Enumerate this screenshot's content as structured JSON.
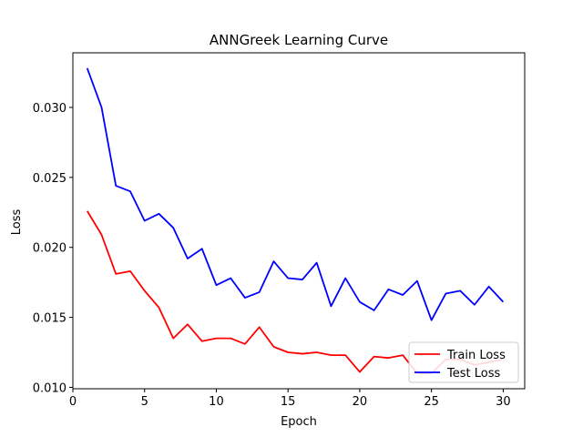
{
  "chart_data": {
    "type": "line",
    "title": "ANNGreek Learning Curve",
    "xlabel": "Epoch",
    "ylabel": "Loss",
    "xlim": [
      0,
      31.5
    ],
    "ylim": [
      0.0099,
      0.0339
    ],
    "xticks": [
      0,
      5,
      10,
      15,
      20,
      25,
      30
    ],
    "yticks": [
      0.01,
      0.015,
      0.02,
      0.025,
      0.03
    ],
    "ytick_labels": [
      "0.010",
      "0.015",
      "0.020",
      "0.025",
      "0.030"
    ],
    "grid": false,
    "legend_position": "lower-right",
    "x": [
      1,
      2,
      3,
      4,
      5,
      6,
      7,
      8,
      9,
      10,
      11,
      12,
      13,
      14,
      15,
      16,
      17,
      18,
      19,
      20,
      21,
      22,
      23,
      24,
      25,
      26,
      27,
      28,
      29,
      30
    ],
    "series": [
      {
        "name": "Train Loss",
        "color": "#ff0000",
        "values": [
          0.0226,
          0.0209,
          0.0181,
          0.0183,
          0.0169,
          0.0157,
          0.0135,
          0.0145,
          0.0133,
          0.0135,
          0.0135,
          0.0131,
          0.0143,
          0.0129,
          0.0125,
          0.0124,
          0.0125,
          0.0123,
          0.0123,
          0.0111,
          0.0122,
          0.0121,
          0.0123,
          0.011,
          0.011,
          0.012,
          0.012,
          0.0116,
          0.0118,
          0.012
        ]
      },
      {
        "name": "Test Loss",
        "color": "#0000ff",
        "values": [
          0.0328,
          0.03,
          0.0244,
          0.024,
          0.0219,
          0.0224,
          0.0214,
          0.0192,
          0.0199,
          0.0173,
          0.0178,
          0.0164,
          0.0168,
          0.019,
          0.0178,
          0.0177,
          0.0189,
          0.0158,
          0.0178,
          0.0161,
          0.0155,
          0.017,
          0.0166,
          0.0176,
          0.0148,
          0.0167,
          0.0169,
          0.0159,
          0.0172,
          0.0161
        ]
      }
    ]
  }
}
